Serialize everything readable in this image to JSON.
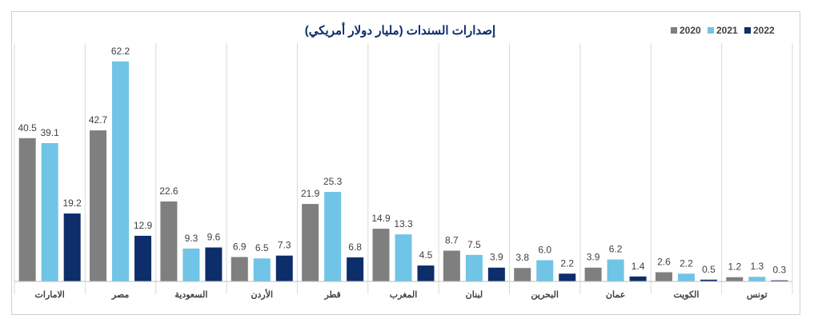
{
  "chart_data": {
    "type": "bar",
    "title": "إصدارات السندات (مليار دولار أمريكي)",
    "categories": [
      "الامارات",
      "مصر",
      "السعودية",
      "الأردن",
      "قطر",
      "المغرب",
      "لبنان",
      "البحرين",
      "عمان",
      "الكويت",
      "تونس"
    ],
    "series": [
      {
        "name": "2020",
        "color": "#7f7f7f",
        "values": [
          40.5,
          42.7,
          22.6,
          6.9,
          21.9,
          14.9,
          8.7,
          3.8,
          3.9,
          2.6,
          1.2
        ]
      },
      {
        "name": "2021",
        "color": "#70c4e6",
        "values": [
          39.1,
          62.2,
          9.3,
          6.5,
          25.3,
          13.3,
          7.5,
          6.0,
          6.2,
          2.2,
          1.3
        ]
      },
      {
        "name": "2022",
        "color": "#0d2d6b",
        "values": [
          19.2,
          12.9,
          9.6,
          7.3,
          6.8,
          4.5,
          3.9,
          2.2,
          1.4,
          0.5,
          0.3
        ]
      }
    ],
    "legend": {
      "labels": [
        "2020",
        "2021",
        "2022"
      ],
      "position": "top-right"
    },
    "ylim": [
      0,
      66
    ],
    "grid": false,
    "title_color": "#0d2d6b",
    "label_color": "#404040"
  }
}
